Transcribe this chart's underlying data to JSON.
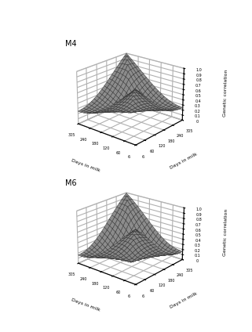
{
  "title_top": "M4",
  "title_bottom": "M6",
  "xlabel": "Days in milk",
  "ylabel": "Days in milk",
  "zlabel": "Genetic correlation",
  "xticks": [
    6,
    60,
    120,
    180,
    240,
    305
  ],
  "yticks": [
    6,
    60,
    120,
    180,
    240,
    305
  ],
  "zticks": [
    0,
    0.1,
    0.2,
    0.3,
    0.4,
    0.5,
    0.6,
    0.7,
    0.8,
    0.9,
    1.0
  ],
  "surface_color": "#b0b0b0",
  "surface_alpha": 0.95,
  "background_color": "#ffffff",
  "elev": 22,
  "azim": -50,
  "figsize": [
    3.21,
    4.24
  ],
  "dpi": 100
}
